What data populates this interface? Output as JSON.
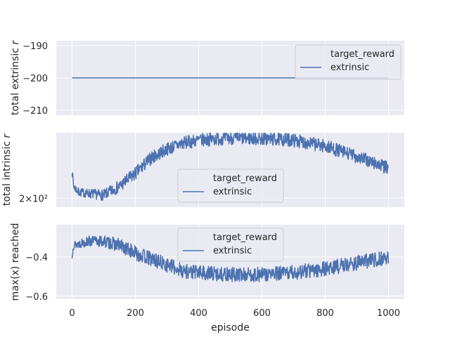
{
  "colors": {
    "figure_background": "#ffffff",
    "axes_background": "#eaeaf2",
    "grid": "#ffffff",
    "series": "#4c72b0",
    "legend_background": "#eaeaf2",
    "legend_border": "#cccccc",
    "text": "#262626"
  },
  "chart_data": [
    {
      "id": "extrinsic",
      "type": "line",
      "ylabel": "total extrinsic r",
      "ylabel_main": "total extrinsic ",
      "ylabel_italic": "r",
      "xlim": [
        -50,
        1050
      ],
      "ylim": [
        -211.5,
        -188.5
      ],
      "yticks": [
        -190,
        -200,
        -210
      ],
      "ytick_labels": [
        "−190",
        "−200",
        "−210"
      ],
      "xticks_show_labels": false,
      "legend": {
        "title": "target_reward",
        "entries": [
          "extrinsic"
        ],
        "placement": "top-right"
      },
      "series": [
        {
          "name": "extrinsic",
          "generator": "constant",
          "points": [
            [
              0,
              -200
            ],
            [
              1000,
              -200
            ]
          ]
        }
      ]
    },
    {
      "id": "intrinsic",
      "type": "line",
      "ylabel": "total intrinsic r",
      "ylabel_main": "total intrinsic ",
      "ylabel_italic": "r",
      "ylog": true,
      "xlim": [
        -50,
        1050
      ],
      "ylim": [
        0,
        1
      ],
      "yticks": [
        0.12
      ],
      "ytick_labels": [
        "2×10²"
      ],
      "xticks_show_labels": false,
      "legend": {
        "title": "target_reward",
        "entries": [
          "extrinsic"
        ],
        "placement": "center"
      },
      "series": [
        {
          "name": "extrinsic",
          "generator": "noisy",
          "seed": 7,
          "n": 1000,
          "noise": 0.09,
          "anchors": [
            [
              0,
              0.5
            ],
            [
              5,
              0.28
            ],
            [
              20,
              0.2
            ],
            [
              60,
              0.18
            ],
            [
              100,
              0.16
            ],
            [
              150,
              0.28
            ],
            [
              200,
              0.45
            ],
            [
              250,
              0.66
            ],
            [
              300,
              0.78
            ],
            [
              350,
              0.86
            ],
            [
              400,
              0.9
            ],
            [
              500,
              0.93
            ],
            [
              600,
              0.92
            ],
            [
              700,
              0.9
            ],
            [
              800,
              0.82
            ],
            [
              900,
              0.68
            ],
            [
              1000,
              0.52
            ]
          ]
        }
      ]
    },
    {
      "id": "maxx",
      "type": "line",
      "ylabel": "max(x) reached",
      "xlabel": "episode",
      "xlim": [
        -50,
        1050
      ],
      "ylim": [
        -0.615,
        -0.235
      ],
      "yticks": [
        -0.4,
        -0.6
      ],
      "ytick_labels": [
        "−0.4",
        "−0.6"
      ],
      "xticks": [
        0,
        200,
        400,
        600,
        800,
        1000
      ],
      "xtick_labels": [
        "0",
        "200",
        "400",
        "600",
        "800",
        "1000"
      ],
      "xticks_show_labels": true,
      "legend": {
        "title": "target_reward",
        "entries": [
          "extrinsic"
        ],
        "placement": "upper-center"
      },
      "series": [
        {
          "name": "extrinsic",
          "generator": "noisy",
          "seed": 13,
          "n": 1000,
          "noise": 0.1,
          "anchors": [
            [
              0,
              -0.41
            ],
            [
              3,
              -0.34
            ],
            [
              50,
              -0.32
            ],
            [
              100,
              -0.32
            ],
            [
              150,
              -0.34
            ],
            [
              200,
              -0.38
            ],
            [
              250,
              -0.41
            ],
            [
              300,
              -0.44
            ],
            [
              350,
              -0.47
            ],
            [
              400,
              -0.48
            ],
            [
              500,
              -0.49
            ],
            [
              600,
              -0.49
            ],
            [
              700,
              -0.48
            ],
            [
              800,
              -0.46
            ],
            [
              900,
              -0.43
            ],
            [
              1000,
              -0.4
            ]
          ]
        }
      ]
    }
  ]
}
